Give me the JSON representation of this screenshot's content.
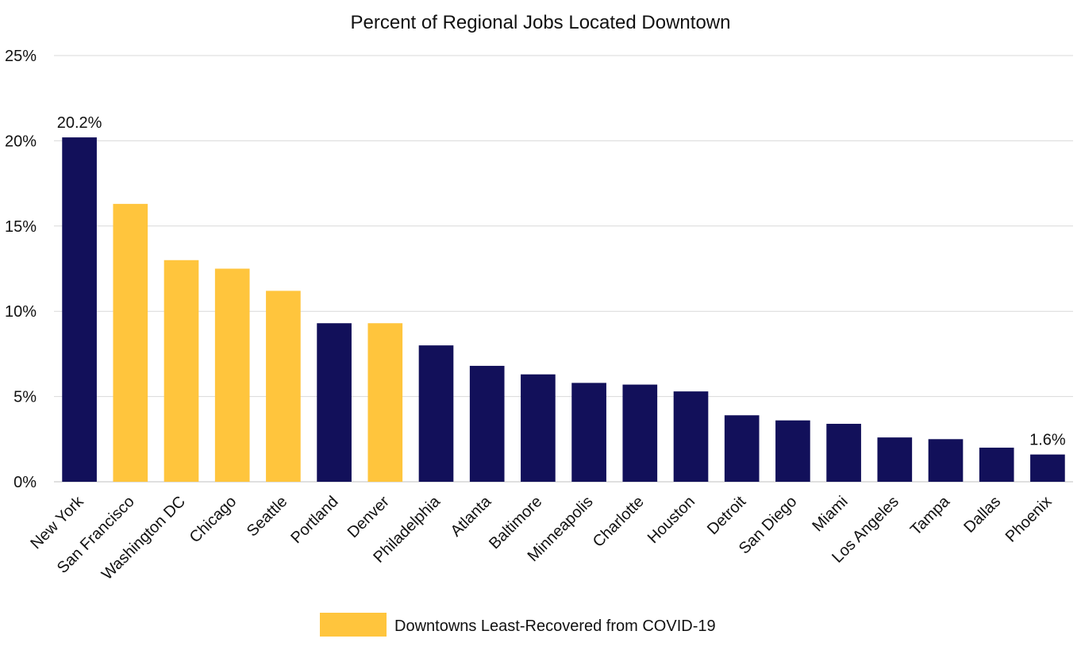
{
  "chart_data": {
    "type": "bar",
    "title": "Percent of Regional Jobs Located Downtown",
    "xlabel": "",
    "ylabel": "",
    "ylim": [
      0,
      25
    ],
    "yticks": [
      0,
      5,
      10,
      15,
      20,
      25
    ],
    "ytick_labels": [
      "0%",
      "5%",
      "10%",
      "15%",
      "20%",
      "25%"
    ],
    "grid": true,
    "legend_position": "bottom-center",
    "categories": [
      "New York",
      "San Francisco",
      "Washington DC",
      "Chicago",
      "Seattle",
      "Portland",
      "Denver",
      "Philadelphia",
      "Atlanta",
      "Baltimore",
      "Minneapolis",
      "Charlotte",
      "Houston",
      "Detroit",
      "San Diego",
      "Miami",
      "Los Angeles",
      "Tampa",
      "Dallas",
      "Phoenix"
    ],
    "values": [
      20.2,
      16.3,
      13.0,
      12.5,
      11.2,
      9.3,
      9.3,
      8.0,
      6.8,
      6.3,
      5.8,
      5.7,
      5.3,
      3.9,
      3.6,
      3.4,
      2.6,
      2.5,
      2.0,
      1.6
    ],
    "least_recovered": [
      false,
      true,
      true,
      true,
      true,
      false,
      true,
      false,
      false,
      false,
      false,
      false,
      false,
      false,
      false,
      false,
      false,
      false,
      false,
      false
    ],
    "data_labels": [
      {
        "category": "New York",
        "text": "20.2%"
      },
      {
        "category": "Phoenix",
        "text": "1.6%"
      }
    ],
    "legend": [
      {
        "name": "Downtowns Least-Recovered from COVID-19",
        "color": "#FFC53D"
      }
    ],
    "colors": {
      "default_bar": "#12105A",
      "highlight_bar": "#FFC53D",
      "gridline": "#D9D9D9"
    }
  }
}
